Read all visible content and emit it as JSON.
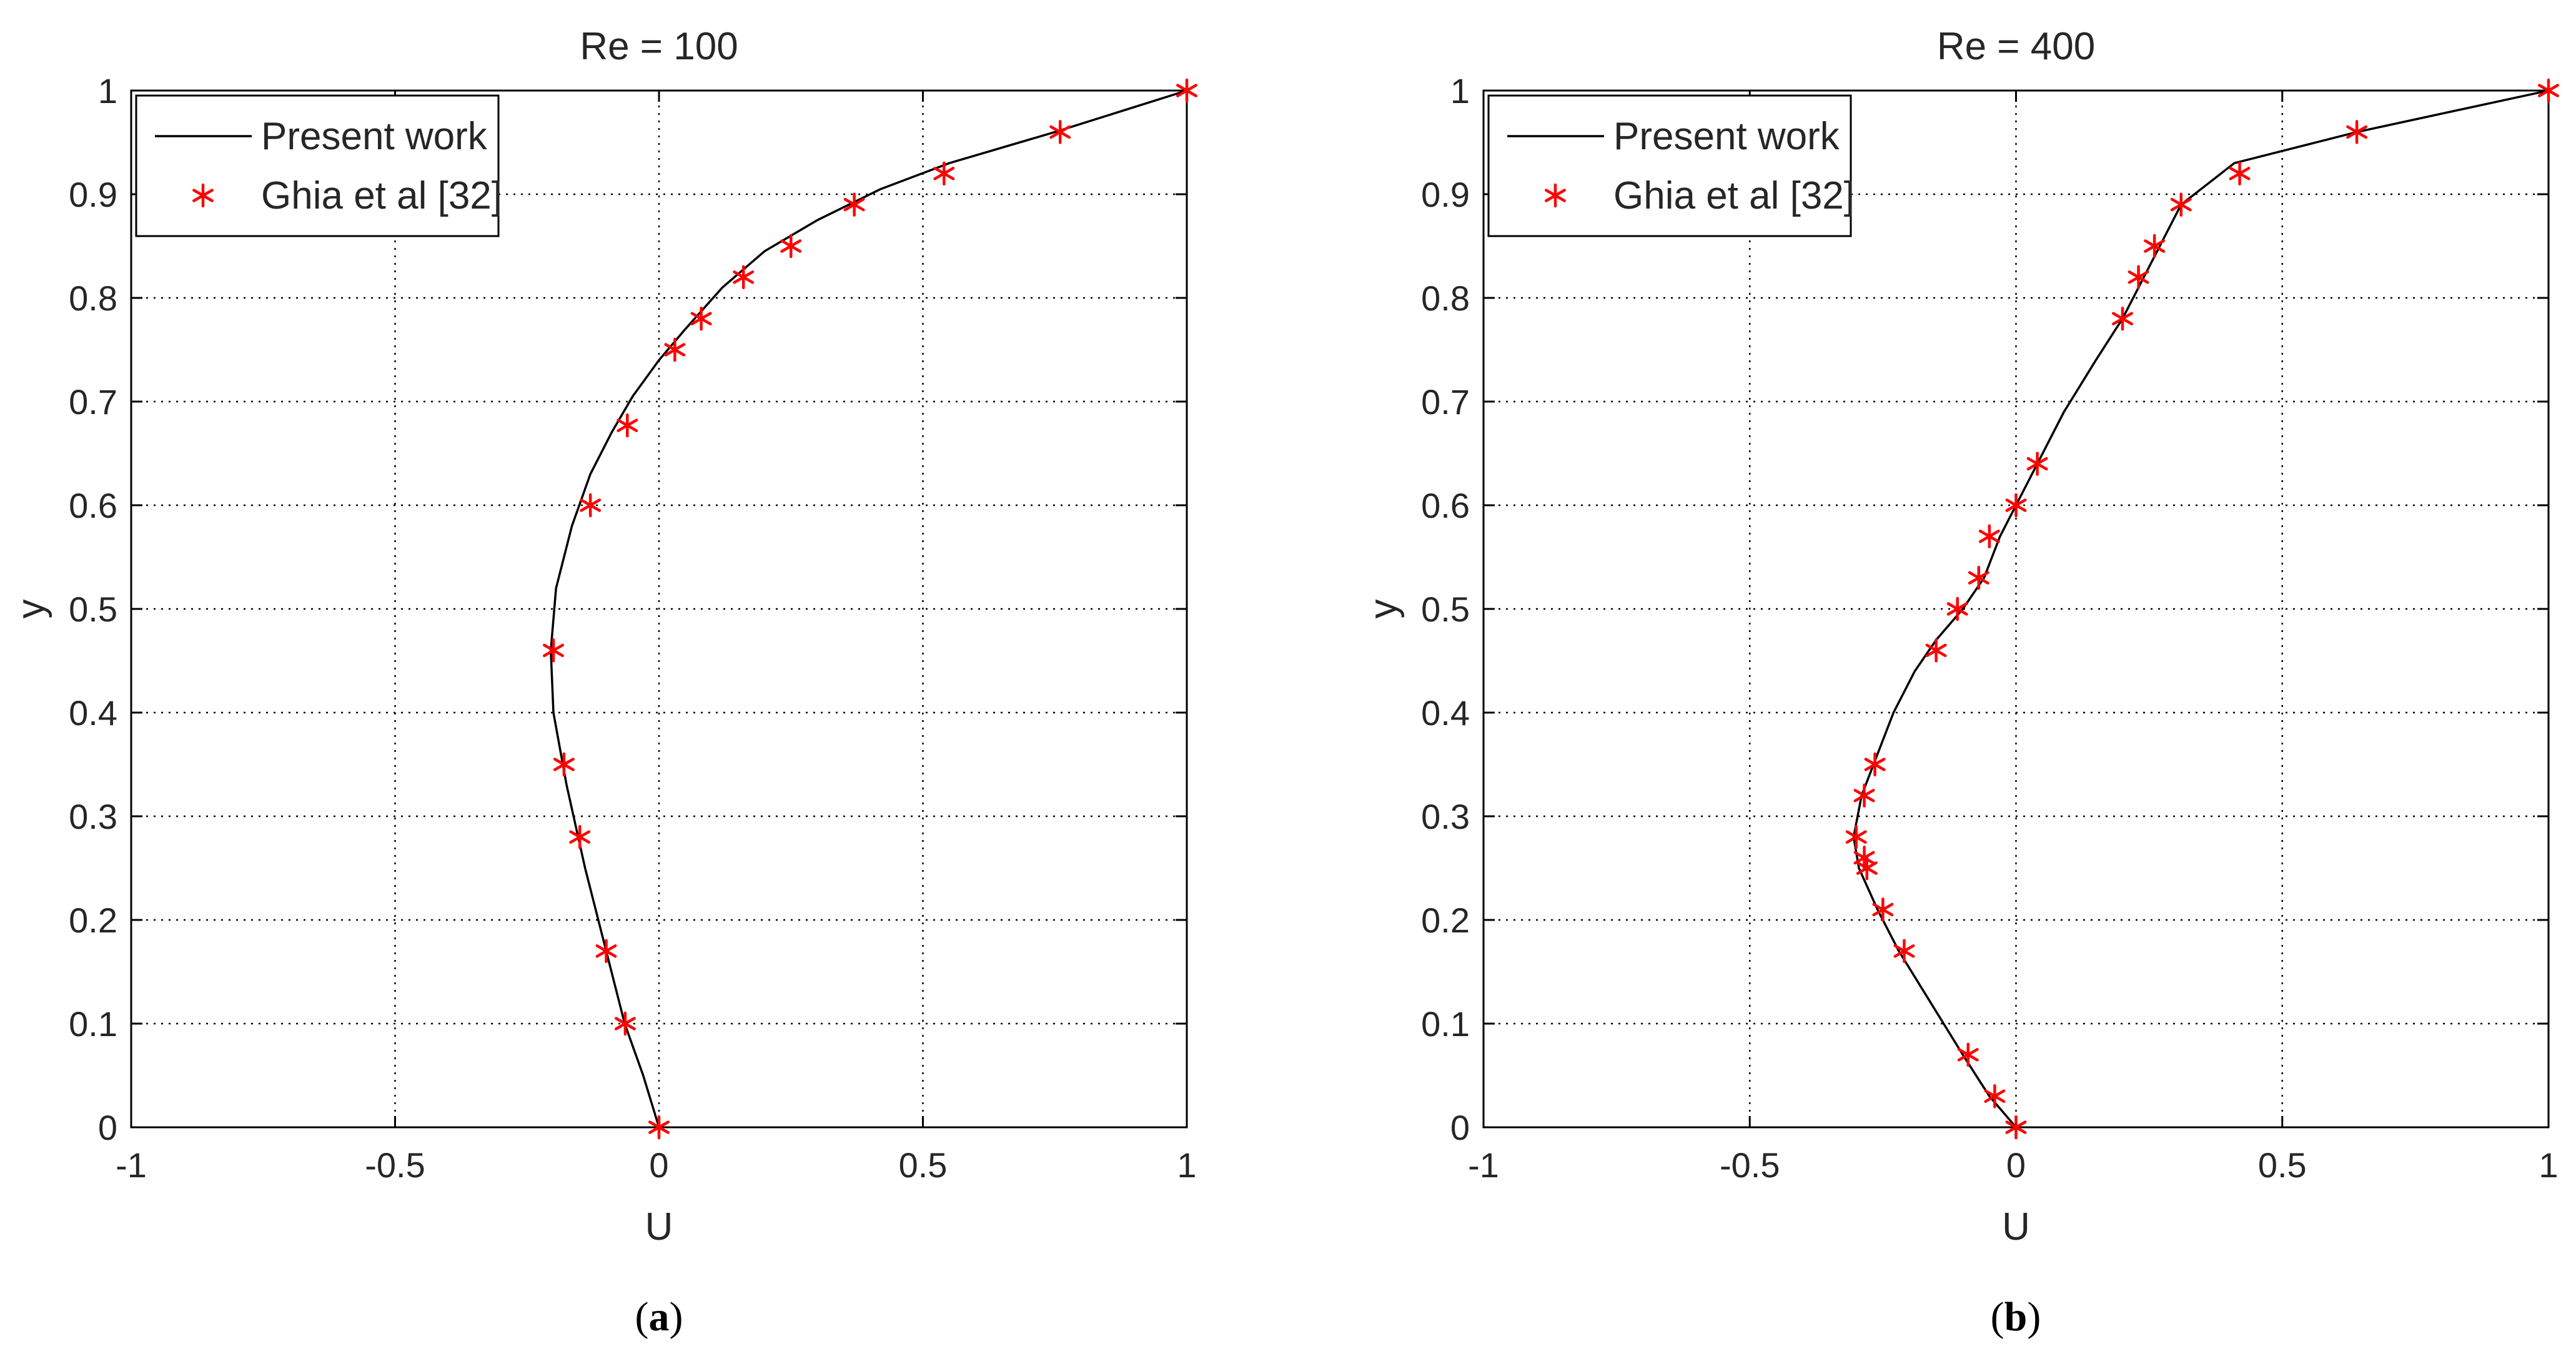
{
  "chart_data": [
    {
      "type": "line",
      "title": "Re = 100",
      "xlabel": "U",
      "ylabel": "y",
      "panel_label": {
        "open": "(",
        "letter": "a",
        "close": ")"
      },
      "xlim": [
        -1,
        1
      ],
      "ylim": [
        0,
        1
      ],
      "xticks": [
        -1,
        -0.5,
        0,
        0.5,
        1
      ],
      "xtick_labels": [
        "-1",
        "-0.5",
        "0",
        "0.5",
        "1"
      ],
      "yticks": [
        0,
        0.1,
        0.2,
        0.3,
        0.4,
        0.5,
        0.6,
        0.7,
        0.8,
        0.9,
        1
      ],
      "ytick_labels": [
        "0",
        "0.1",
        "0.2",
        "0.3",
        "0.4",
        "0.5",
        "0.6",
        "0.7",
        "0.8",
        "0.9",
        "1"
      ],
      "grid": true,
      "legend_position": "top-left",
      "series": [
        {
          "name": "Present work",
          "style": "line",
          "color": "#000000",
          "x": [
            0,
            -0.03,
            -0.065,
            -0.1,
            -0.14,
            -0.175,
            -0.2,
            -0.205,
            -0.195,
            -0.165,
            -0.13,
            -0.09,
            -0.05,
            0.0,
            0.05,
            0.12,
            0.2,
            0.3,
            0.42,
            0.55,
            0.75,
            1.0
          ],
          "y": [
            0,
            0.05,
            0.1,
            0.17,
            0.25,
            0.33,
            0.4,
            0.46,
            0.52,
            0.58,
            0.63,
            0.67,
            0.705,
            0.74,
            0.77,
            0.81,
            0.845,
            0.875,
            0.905,
            0.93,
            0.96,
            1.0
          ]
        },
        {
          "name": "Ghia et al [32]",
          "style": "markers",
          "marker": "asterisk",
          "color": "#ff0000",
          "x": [
            0,
            -0.064,
            -0.1,
            -0.15,
            -0.18,
            -0.2,
            -0.13,
            -0.06,
            0.03,
            0.08,
            0.16,
            0.25,
            0.37,
            0.54,
            0.76,
            1.0
          ],
          "y": [
            0,
            0.1,
            0.17,
            0.28,
            0.35,
            0.46,
            0.6,
            0.677,
            0.75,
            0.78,
            0.82,
            0.85,
            0.89,
            0.92,
            0.96,
            1.0
          ]
        }
      ]
    },
    {
      "type": "line",
      "title": "Re = 400",
      "xlabel": "U",
      "ylabel": "y",
      "panel_label": {
        "open": "(",
        "letter": "b",
        "close": ")"
      },
      "xlim": [
        -1,
        1
      ],
      "ylim": [
        0,
        1
      ],
      "xticks": [
        -1,
        -0.5,
        0,
        0.5,
        1
      ],
      "xtick_labels": [
        "-1",
        "-0.5",
        "0",
        "0.5",
        "1"
      ],
      "yticks": [
        0,
        0.1,
        0.2,
        0.3,
        0.4,
        0.5,
        0.6,
        0.7,
        0.8,
        0.9,
        1
      ],
      "ytick_labels": [
        "0",
        "0.1",
        "0.2",
        "0.3",
        "0.4",
        "0.5",
        "0.6",
        "0.7",
        "0.8",
        "0.9",
        "1"
      ],
      "grid": true,
      "legend_position": "top-left",
      "series": [
        {
          "name": "Present work",
          "style": "line",
          "color": "#000000",
          "x": [
            0,
            -0.05,
            -0.1,
            -0.16,
            -0.22,
            -0.26,
            -0.295,
            -0.305,
            -0.29,
            -0.26,
            -0.23,
            -0.19,
            -0.15,
            -0.1,
            -0.06,
            -0.03,
            0.0,
            0.04,
            0.09,
            0.15,
            0.2,
            0.24,
            0.27,
            0.31,
            0.41,
            0.64,
            1.0
          ],
          "y": [
            0,
            0.03,
            0.07,
            0.12,
            0.17,
            0.21,
            0.25,
            0.28,
            0.32,
            0.36,
            0.4,
            0.44,
            0.47,
            0.5,
            0.53,
            0.57,
            0.6,
            0.64,
            0.69,
            0.74,
            0.78,
            0.82,
            0.85,
            0.89,
            0.93,
            0.96,
            1.0
          ]
        },
        {
          "name": "Ghia et al [32]",
          "style": "markers",
          "marker": "asterisk",
          "color": "#ff0000",
          "x": [
            0,
            -0.04,
            -0.09,
            -0.21,
            -0.25,
            -0.28,
            -0.285,
            -0.3,
            -0.285,
            -0.265,
            -0.15,
            -0.11,
            -0.07,
            -0.05,
            0.0,
            0.04,
            0.2,
            0.23,
            0.26,
            0.31,
            0.42,
            0.64,
            1.0
          ],
          "y": [
            0,
            0.03,
            0.07,
            0.17,
            0.21,
            0.25,
            0.26,
            0.28,
            0.32,
            0.35,
            0.46,
            0.5,
            0.53,
            0.57,
            0.6,
            0.64,
            0.78,
            0.82,
            0.85,
            0.89,
            0.92,
            0.96,
            1.0
          ]
        }
      ]
    }
  ]
}
